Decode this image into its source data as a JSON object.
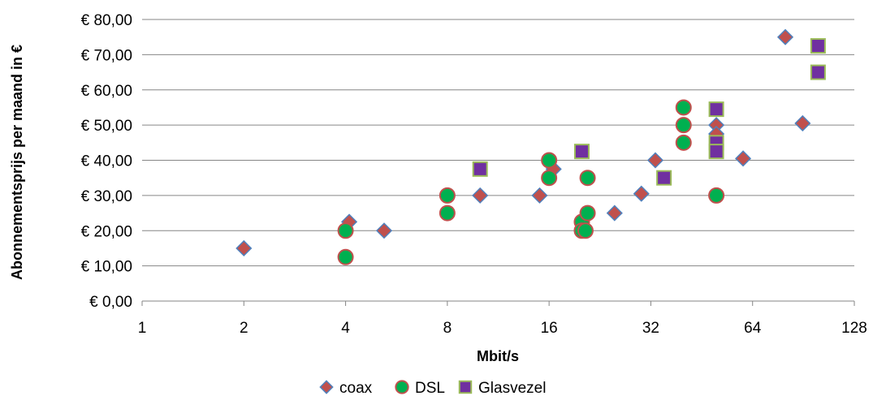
{
  "chart_data": {
    "type": "scatter",
    "title": "",
    "xlabel": "Mbit/s",
    "ylabel": "Abonnementsprijs per maand in €",
    "x_scale": "log2",
    "xlim": [
      1,
      128
    ],
    "ylim": [
      0,
      80
    ],
    "x_ticks": [
      "1",
      "2",
      "4",
      "8",
      "16",
      "32",
      "64",
      "128"
    ],
    "y_ticks": [
      "€ 0,00",
      "€ 10,00",
      "€ 20,00",
      "€ 30,00",
      "€ 40,00",
      "€ 50,00",
      "€ 60,00",
      "€ 70,00",
      "€ 80,00"
    ],
    "grid": "horizontal",
    "legend_position": "bottom",
    "series": [
      {
        "name": "coax",
        "marker": "diamond",
        "fill": "#C0504D",
        "stroke": "#4F81BD",
        "points": [
          [
            2,
            15
          ],
          [
            4.1,
            22.5
          ],
          [
            5.2,
            20
          ],
          [
            8,
            30
          ],
          [
            10,
            30
          ],
          [
            15,
            30
          ],
          [
            16.5,
            37.5
          ],
          [
            25,
            25
          ],
          [
            30,
            30.5
          ],
          [
            33,
            40
          ],
          [
            50,
            50
          ],
          [
            50,
            47.5
          ],
          [
            60,
            40.5
          ],
          [
            80,
            75
          ],
          [
            90,
            50.5
          ]
        ]
      },
      {
        "name": "DSL",
        "marker": "circle",
        "fill": "#00B050",
        "stroke": "#C0504D",
        "points": [
          [
            4,
            20
          ],
          [
            4,
            12.5
          ],
          [
            8,
            30
          ],
          [
            8,
            25
          ],
          [
            16,
            40
          ],
          [
            16,
            35
          ],
          [
            20,
            22.5
          ],
          [
            20,
            20
          ],
          [
            20.5,
            20
          ],
          [
            20.8,
            25
          ],
          [
            20.8,
            35
          ],
          [
            40,
            55
          ],
          [
            40,
            50
          ],
          [
            40,
            45
          ],
          [
            50,
            30
          ]
        ]
      },
      {
        "name": "Glasvezel",
        "marker": "square",
        "fill": "#7030A0",
        "stroke": "#9BBB59",
        "points": [
          [
            10,
            37.5
          ],
          [
            20,
            42.5
          ],
          [
            35,
            35
          ],
          [
            50,
            54.5
          ],
          [
            50,
            45
          ],
          [
            50,
            42.5
          ],
          [
            100,
            72.5
          ],
          [
            100,
            65
          ]
        ]
      }
    ]
  }
}
